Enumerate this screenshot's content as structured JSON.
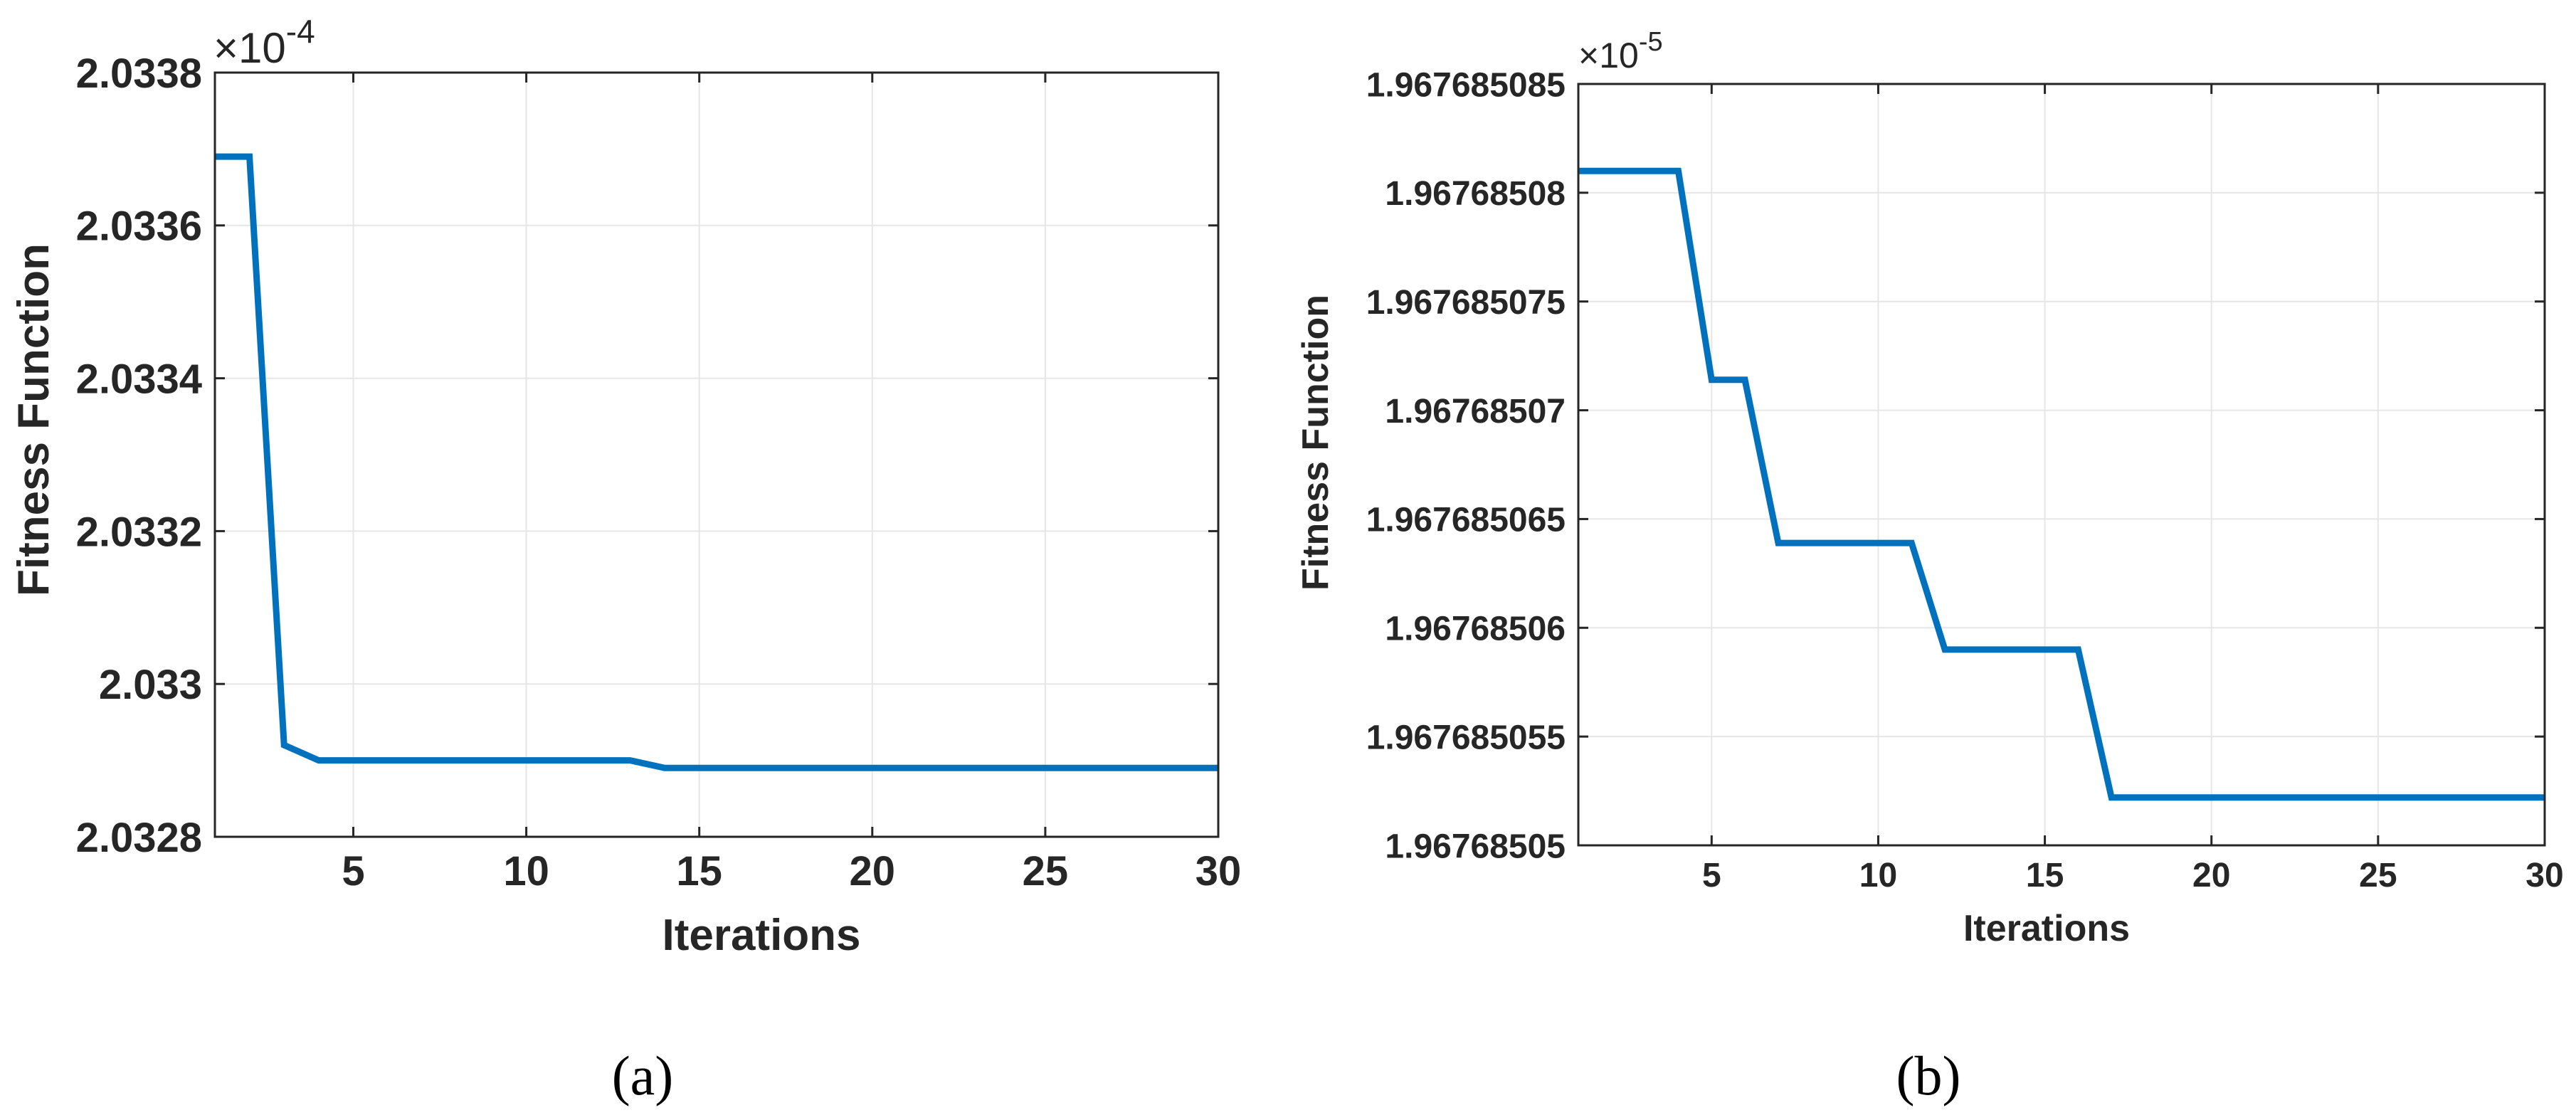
{
  "colors": {
    "line": "#0072BD",
    "grid": "#E6E6E6",
    "axis": "#262626",
    "text": "#262626"
  },
  "chart_data": [
    {
      "type": "line",
      "panel_label": "(a)",
      "title": "",
      "xlabel": "Iterations",
      "ylabel": "Fitness Function",
      "exponent_label": "×10",
      "exponent_power": "-4",
      "xlim": [
        1,
        30
      ],
      "ylim": [
        2.0328,
        2.0338
      ],
      "grid": true,
      "xticks": [
        5,
        10,
        15,
        20,
        25,
        30
      ],
      "xtick_labels": [
        "5",
        "10",
        "15",
        "20",
        "25",
        "30"
      ],
      "yticks": [
        2.0328,
        2.033,
        2.0332,
        2.0334,
        2.0336,
        2.0338
      ],
      "ytick_labels": [
        "2.0328",
        "2.033",
        "2.0332",
        "2.0334",
        "2.0336",
        "2.0338"
      ],
      "series": [
        {
          "x": [
            1,
            2,
            3,
            4,
            5,
            6,
            7,
            8,
            9,
            10,
            11,
            12,
            13,
            14,
            15,
            16,
            17,
            18,
            19,
            20,
            21,
            22,
            23,
            24,
            25,
            26,
            27,
            28,
            29,
            30
          ],
          "values": [
            2.03369,
            2.03369,
            2.03292,
            2.0329,
            2.0329,
            2.0329,
            2.0329,
            2.0329,
            2.0329,
            2.0329,
            2.0329,
            2.0329,
            2.0329,
            2.03289,
            2.03289,
            2.03289,
            2.03289,
            2.03289,
            2.03289,
            2.03289,
            2.03289,
            2.03289,
            2.03289,
            2.03289,
            2.03289,
            2.03289,
            2.03289,
            2.03289,
            2.03289,
            2.03289
          ]
        }
      ]
    },
    {
      "type": "line",
      "panel_label": "(b)",
      "title": "",
      "xlabel": "Iterations",
      "ylabel": "Fitness Function",
      "exponent_label": "×10",
      "exponent_power": "-5",
      "xlim": [
        1,
        30
      ],
      "ylim": [
        1.96768505,
        1.967685085
      ],
      "grid": true,
      "xticks": [
        5,
        10,
        15,
        20,
        25,
        30
      ],
      "xtick_labels": [
        "5",
        "10",
        "15",
        "20",
        "25",
        "30"
      ],
      "yticks": [
        1.96768505,
        1.967685055,
        1.96768506,
        1.967685065,
        1.96768507,
        1.967685075,
        1.96768508,
        1.967685085
      ],
      "ytick_labels": [
        "1.96768505",
        "1.967685055",
        "1.96768506",
        "1.967685065",
        "1.96768507",
        "1.967685075",
        "1.96768508",
        "1.967685085"
      ],
      "series": [
        {
          "x": [
            1,
            2,
            3,
            4,
            5,
            6,
            7,
            8,
            9,
            10,
            11,
            12,
            13,
            14,
            15,
            16,
            17,
            18,
            19,
            20,
            21,
            22,
            23,
            24,
            25,
            26,
            27,
            28,
            29,
            30
          ],
          "values": [
            1.967685081,
            1.967685081,
            1.967685081,
            1.967685081,
            1.9676850714,
            1.9676850714,
            1.9676850639,
            1.9676850639,
            1.9676850639,
            1.9676850639,
            1.9676850639,
            1.967685059,
            1.967685059,
            1.967685059,
            1.967685059,
            1.967685059,
            1.9676850522,
            1.9676850522,
            1.9676850522,
            1.9676850522,
            1.9676850522,
            1.9676850522,
            1.9676850522,
            1.9676850522,
            1.9676850522,
            1.9676850522,
            1.9676850522,
            1.9676850522,
            1.9676850522,
            1.9676850522
          ]
        }
      ]
    }
  ]
}
